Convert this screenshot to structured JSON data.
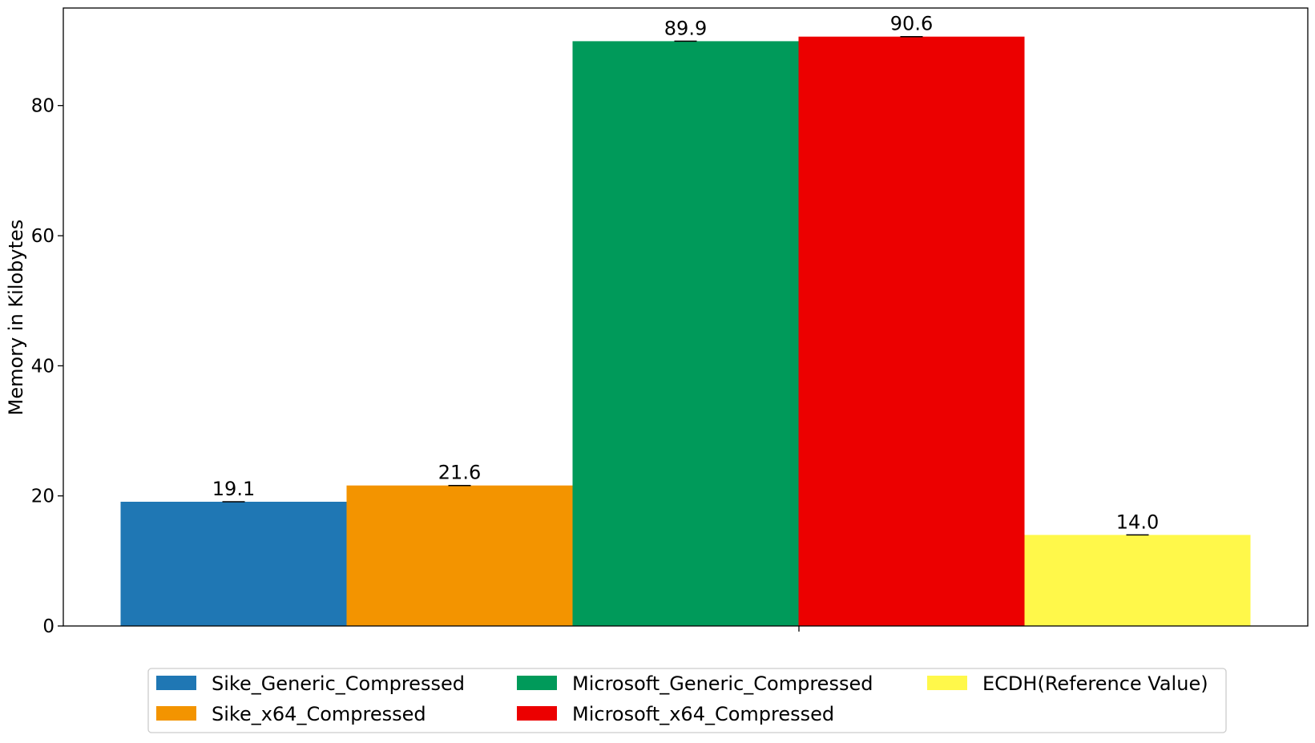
{
  "chart_data": {
    "type": "bar",
    "title": "",
    "xlabel": "",
    "ylabel": "Memory in Kilobytes",
    "ylim": [
      0,
      95
    ],
    "yticks": [
      0,
      20,
      40,
      60,
      80
    ],
    "grid": false,
    "legend_position": "bottom",
    "categories": [
      ""
    ],
    "series": [
      {
        "name": "Sike_Generic_Compressed",
        "values": [
          19.1
        ],
        "label": "19.1",
        "color": "#1f77b4"
      },
      {
        "name": "Sike_x64_Compressed",
        "values": [
          21.6
        ],
        "label": "21.6",
        "color": "#f39400"
      },
      {
        "name": "Microsoft_Generic_Compressed",
        "values": [
          89.9
        ],
        "label": "89.9",
        "color": "#009a5a"
      },
      {
        "name": "Microsoft_x64_Compressed",
        "values": [
          90.6
        ],
        "label": "90.6",
        "color": "#ec0000"
      },
      {
        "name": "ECDH(Reference Value)",
        "values": [
          14.0
        ],
        "label": "14.0",
        "color": "#fff84a"
      }
    ]
  }
}
